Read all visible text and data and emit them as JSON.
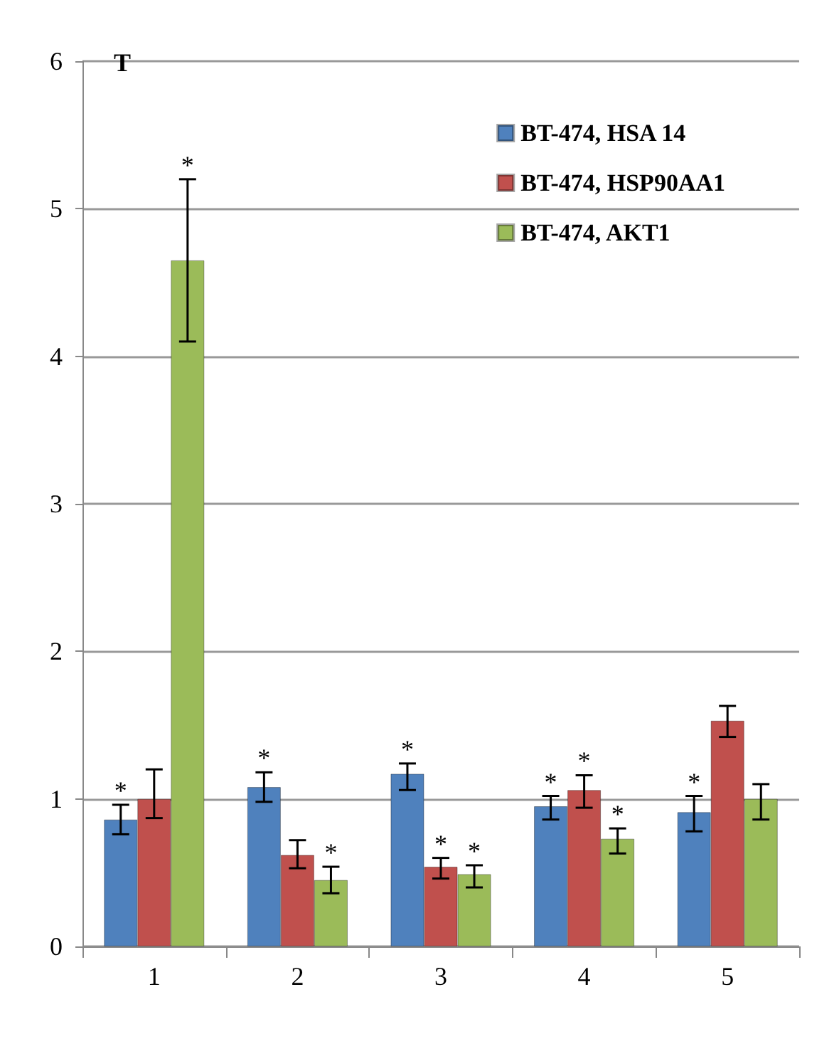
{
  "chart_data": {
    "type": "bar",
    "ylabel": "T",
    "categories": [
      "1",
      "2",
      "3",
      "4",
      "5"
    ],
    "series": [
      {
        "name": "BT-474, HSA 14",
        "color": "#4f81bd",
        "values": [
          0.86,
          1.08,
          1.17,
          0.95,
          0.91
        ],
        "errors": [
          [
            0.76,
            0.96
          ],
          [
            0.98,
            1.18
          ],
          [
            1.06,
            1.24
          ],
          [
            0.86,
            1.02
          ],
          [
            0.78,
            1.02
          ]
        ],
        "value_labels": [
          "*",
          "*",
          "*",
          "*",
          "*"
        ]
      },
      {
        "name": "BT-474, HSP90AA1",
        "color": "#c0504d",
        "values": [
          1.0,
          0.62,
          0.54,
          1.06,
          1.53
        ],
        "errors": [
          [
            0.87,
            1.2
          ],
          [
            0.53,
            0.72
          ],
          [
            0.46,
            0.6
          ],
          [
            0.94,
            1.16
          ],
          [
            1.42,
            1.63
          ]
        ],
        "value_labels": [
          null,
          null,
          "*",
          "*",
          null
        ]
      },
      {
        "name": "BT-474, AKT1",
        "color": "#9bbb59",
        "values": [
          4.65,
          0.45,
          0.49,
          0.73,
          1.0
        ],
        "errors": [
          [
            4.1,
            5.2
          ],
          [
            0.36,
            0.54
          ],
          [
            0.4,
            0.55
          ],
          [
            0.63,
            0.8
          ],
          [
            0.86,
            1.1
          ]
        ],
        "value_labels": [
          "*",
          "*",
          "*",
          "*",
          null
        ]
      }
    ],
    "ylim": [
      0,
      6
    ],
    "yticks": [
      0,
      1,
      2,
      3,
      4,
      5,
      6
    ],
    "grid": "y",
    "legend": "top right"
  }
}
